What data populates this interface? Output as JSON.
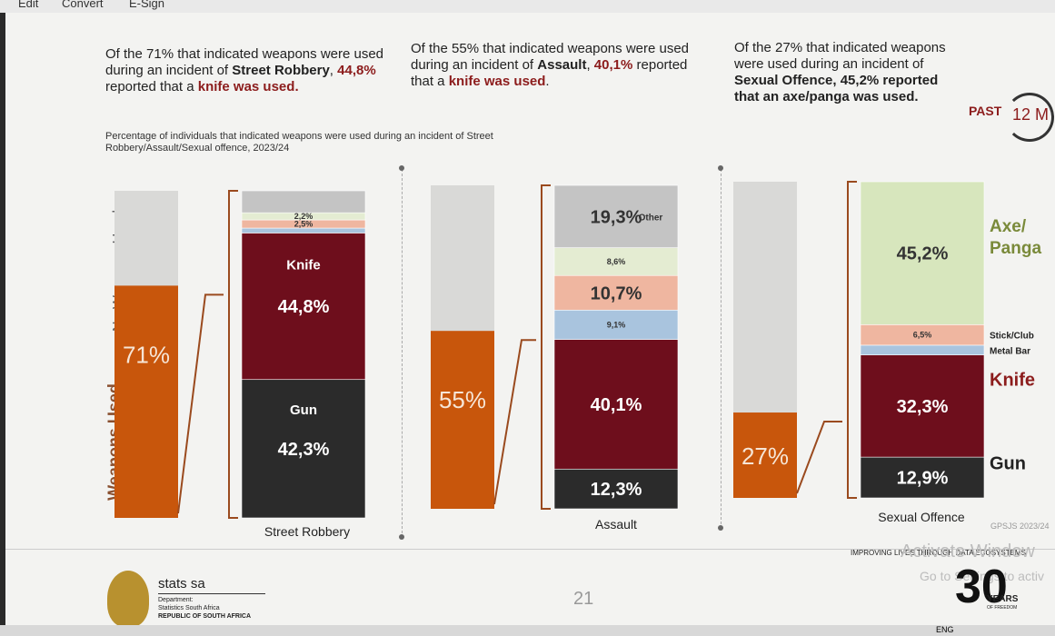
{
  "toolbar": {
    "edit": "Edit",
    "convert": "Convert",
    "esign": "E-Sign"
  },
  "headings": {
    "robbery": {
      "p1": "Of the 71% that indicated weapons were used during an incident of ",
      "b1": "Street Robbery",
      "p2": ", ",
      "h1": "44,8%",
      "p3": " reported that a ",
      "h2": "knife was used."
    },
    "assault": {
      "p1": "Of the 55% that indicated weapons were used during an incident of ",
      "b1": "Assault",
      "p2": ", ",
      "h1": "40,1%",
      "p3": " reported that a ",
      "h2": "knife was used",
      "p4": "."
    },
    "sexual": {
      "p1": "Of the 27% that indicated weapons were used during an incident of ",
      "b1": "Sexual Offence, 45,2% reported that an axe/panga was used."
    }
  },
  "subtitle": "Percentage of individuals that indicated weapons were used during an incident of Street Robbery/Assault/Sexual offence, 2023/24",
  "badge": {
    "past": "PAST",
    "period": "12 M"
  },
  "axis": {
    "no": "No Weapons Used",
    "yes": "Weapons Used"
  },
  "chart_data": [
    {
      "type": "bar",
      "category": "Street Robbery",
      "weapons_used_pct": 71,
      "weapons_used_label": "71%",
      "breakdown": [
        {
          "name": "Gun",
          "value": 42.3,
          "label": "42,3%",
          "color": "#2b2b2b"
        },
        {
          "name": "Knife",
          "value": 44.8,
          "label": "44,8%",
          "color": "#6e0e1c"
        },
        {
          "name": "",
          "value": 1.5,
          "label": "",
          "color": "#a9c4de"
        },
        {
          "name": "",
          "value": 2.5,
          "label": "2,5%",
          "color": "#efb6a0"
        },
        {
          "name": "",
          "value": 2.2,
          "label": "2,2%",
          "color": "#e4ecd2"
        },
        {
          "name": "",
          "value": 6.7,
          "label": "",
          "color": "#c4c4c4"
        }
      ]
    },
    {
      "type": "bar",
      "category": "Assault",
      "weapons_used_pct": 55,
      "weapons_used_label": "55%",
      "breakdown": [
        {
          "name": "",
          "value": 12.3,
          "label": "12,3%",
          "color": "#2b2b2b"
        },
        {
          "name": "",
          "value": 40.1,
          "label": "40,1%",
          "color": "#6e0e1c"
        },
        {
          "name": "",
          "value": 9.1,
          "label": "9,1%",
          "color": "#a9c4de"
        },
        {
          "name": "",
          "value": 10.7,
          "label": "10,7%",
          "color": "#efb6a0"
        },
        {
          "name": "",
          "value": 8.6,
          "label": "8,6%",
          "color": "#e4ecd2"
        },
        {
          "name": "Other",
          "value": 19.3,
          "label": "19,3%",
          "color": "#c4c4c4"
        }
      ]
    },
    {
      "type": "bar",
      "category": "Sexual Offence",
      "weapons_used_pct": 27,
      "weapons_used_label": "27%",
      "breakdown": [
        {
          "name": "Gun",
          "value": 12.9,
          "label": "12,9%",
          "color": "#2b2b2b"
        },
        {
          "name": "Knife",
          "value": 32.3,
          "label": "32,3%",
          "color": "#6e0e1c"
        },
        {
          "name": "Metal Bar",
          "value": 3.1,
          "label": "",
          "color": "#a9c4de"
        },
        {
          "name": "Stick/Club",
          "value": 6.5,
          "label": "6,5%",
          "color": "#efb6a0"
        },
        {
          "name": "Axe/ Panga",
          "value": 45.2,
          "label": "45,2%",
          "color": "#d7e6bd"
        }
      ]
    }
  ],
  "footer": {
    "org": "stats sa",
    "dept": "Department:",
    "dept2": "Statistics South Africa",
    "rsa": "REPUBLIC OF SOUTH AFRICA",
    "page": "21",
    "source": "GPSJS 2023/24",
    "tagline": "IMPROVING LIVES THROUGH DATA ECOSYSTEMS",
    "thirty": "30",
    "years": "YEARS",
    "freedom": "OF FREEDOM",
    "watermark1": "Activate Window",
    "watermark2": "Go to Settings to activ"
  },
  "taskbar": {
    "lang": "ENG"
  }
}
